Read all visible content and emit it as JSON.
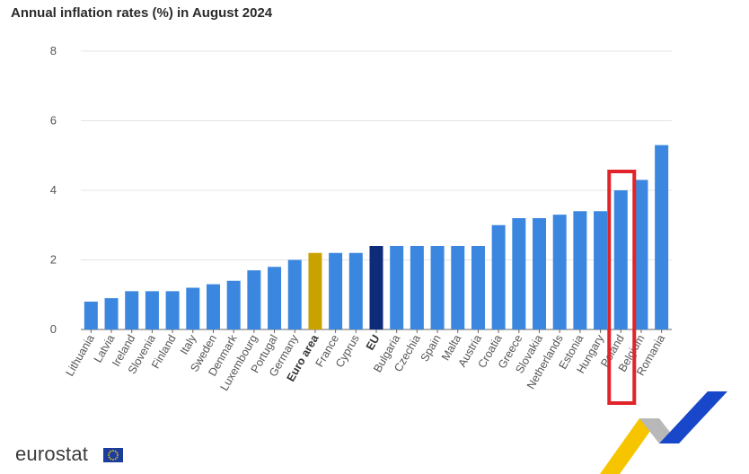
{
  "title": "Annual inflation rates (%) in August 2024",
  "brand": {
    "name": "eurostat",
    "logo_icon": "eu-flag-icon"
  },
  "colors": {
    "bar": "#3b87e0",
    "euro_area": "#c9a200",
    "eu": "#0e2b7a",
    "highlight_box": "#e0242a",
    "grid": "#e4e4e4"
  },
  "highlight": {
    "category": "Poland"
  },
  "chart_data": {
    "type": "bar",
    "title": "Annual inflation rates (%) in August 2024",
    "xlabel": "",
    "ylabel": "",
    "ylim": [
      0,
      8
    ],
    "yticks": [
      0,
      2,
      4,
      6,
      8
    ],
    "grid": true,
    "categories": [
      "Lithuania",
      "Latvia",
      "Ireland",
      "Slovenia",
      "Finland",
      "Italy",
      "Sweden",
      "Denmark",
      "Luxembourg",
      "Portugal",
      "Germany",
      "Euro area",
      "France",
      "Cyprus",
      "EU",
      "Bulgaria",
      "Czechia",
      "Spain",
      "Malta",
      "Austria",
      "Croatia",
      "Greece",
      "Slovakia",
      "Netherlands",
      "Estonia",
      "Hungary",
      "Poland",
      "Belgium",
      "Romania"
    ],
    "values": [
      0.8,
      0.9,
      1.1,
      1.1,
      1.1,
      1.2,
      1.3,
      1.4,
      1.7,
      1.8,
      2.0,
      2.2,
      2.2,
      2.2,
      2.4,
      2.4,
      2.4,
      2.4,
      2.4,
      2.4,
      3.0,
      3.2,
      3.2,
      3.3,
      3.4,
      3.4,
      4.0,
      4.3,
      5.3
    ],
    "emphasized": [
      "Euro area",
      "EU"
    ]
  }
}
